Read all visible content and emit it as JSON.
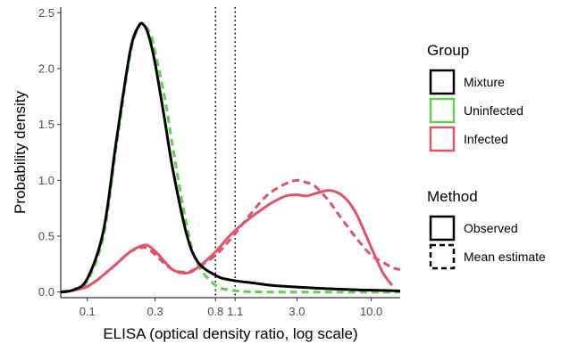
{
  "chart_data": {
    "type": "line",
    "xlabel": "ELISA (optical density ratio, log scale)",
    "ylabel": "Probability density",
    "x_scale": "log10",
    "xlim": [
      0.065,
      16
    ],
    "ylim": [
      -0.05,
      2.55
    ],
    "x_ticks": [
      {
        "value": 0.1,
        "label": "0.1"
      },
      {
        "value": 0.3,
        "label": "0.3"
      },
      {
        "value": 0.8,
        "label": "0.8"
      },
      {
        "value": 1.1,
        "label": "1.1"
      },
      {
        "value": 3.0,
        "label": "3.0"
      },
      {
        "value": 10.0,
        "label": "10.0"
      }
    ],
    "y_ticks": [
      {
        "value": 0.0,
        "label": "0.0"
      },
      {
        "value": 0.5,
        "label": "0.5"
      },
      {
        "value": 1.0,
        "label": "1.0"
      },
      {
        "value": 1.5,
        "label": "1.5"
      },
      {
        "value": 2.0,
        "label": "2.0"
      },
      {
        "value": 2.5,
        "label": "2.5"
      }
    ],
    "cutoff_lines": [
      0.8,
      1.1
    ],
    "grid": false,
    "legend_position": "right",
    "series": [
      {
        "group": "Mixture",
        "method": "Observed",
        "color": "#000000",
        "x": [
          0.065,
          0.08,
          0.1,
          0.13,
          0.16,
          0.2,
          0.23,
          0.25,
          0.27,
          0.3,
          0.35,
          0.4,
          0.5,
          0.6,
          0.8,
          1.0,
          1.5,
          2.0,
          3.0,
          5.0,
          8.0,
          12.0,
          16.0
        ],
        "y": [
          0.0,
          0.02,
          0.12,
          0.55,
          1.35,
          2.15,
          2.38,
          2.39,
          2.3,
          2.05,
          1.55,
          1.1,
          0.52,
          0.27,
          0.15,
          0.11,
          0.08,
          0.06,
          0.045,
          0.03,
          0.02,
          0.015,
          0.01
        ]
      },
      {
        "group": "Uninfected",
        "method": "Mean estimate",
        "color": "#61d04f",
        "x": [
          0.065,
          0.08,
          0.1,
          0.13,
          0.16,
          0.2,
          0.23,
          0.25,
          0.28,
          0.3,
          0.35,
          0.4,
          0.5,
          0.6,
          0.8,
          1.0,
          1.3,
          2.0,
          4.0,
          16.0
        ],
        "y": [
          0.0,
          0.015,
          0.1,
          0.5,
          1.3,
          2.12,
          2.37,
          2.4,
          2.3,
          2.15,
          1.75,
          1.3,
          0.6,
          0.25,
          0.06,
          0.02,
          0.005,
          0.0,
          0.0,
          0.0
        ]
      },
      {
        "group": "Infected",
        "method": "Observed",
        "color": "#df536b",
        "x": [
          0.065,
          0.1,
          0.15,
          0.2,
          0.25,
          0.28,
          0.32,
          0.4,
          0.5,
          0.6,
          0.8,
          1.0,
          1.3,
          1.7,
          2.0,
          2.5,
          3.0,
          3.5,
          4.0,
          5.0,
          6.0,
          7.0,
          8.0,
          10.0,
          12.0,
          14.0
        ],
        "y": [
          0.0,
          0.05,
          0.22,
          0.36,
          0.42,
          0.4,
          0.33,
          0.2,
          0.17,
          0.22,
          0.36,
          0.5,
          0.63,
          0.74,
          0.8,
          0.86,
          0.87,
          0.86,
          0.88,
          0.91,
          0.88,
          0.8,
          0.68,
          0.4,
          0.18,
          0.06
        ]
      },
      {
        "group": "Infected",
        "method": "Mean estimate",
        "color": "#df536b",
        "x": [
          0.065,
          0.1,
          0.15,
          0.2,
          0.25,
          0.28,
          0.32,
          0.4,
          0.5,
          0.6,
          0.8,
          1.0,
          1.3,
          1.7,
          2.0,
          2.5,
          3.0,
          3.5,
          4.0,
          5.0,
          6.0,
          8.0,
          10.0,
          12.0,
          14.0,
          16.0
        ],
        "y": [
          0.0,
          0.05,
          0.22,
          0.36,
          0.4,
          0.37,
          0.3,
          0.2,
          0.18,
          0.22,
          0.33,
          0.46,
          0.64,
          0.82,
          0.9,
          0.97,
          1.0,
          0.98,
          0.95,
          0.82,
          0.68,
          0.47,
          0.33,
          0.27,
          0.22,
          0.2
        ]
      }
    ]
  },
  "legend": {
    "group_title": "Group",
    "group_items": [
      {
        "label": "Mixture",
        "color": "#000000"
      },
      {
        "label": "Uninfected",
        "color": "#61d04f"
      },
      {
        "label": "Infected",
        "color": "#df536b"
      }
    ],
    "method_title": "Method",
    "method_items": [
      {
        "label": "Observed",
        "dash": "solid"
      },
      {
        "label": "Mean estimate",
        "dash": "dashed"
      }
    ]
  }
}
